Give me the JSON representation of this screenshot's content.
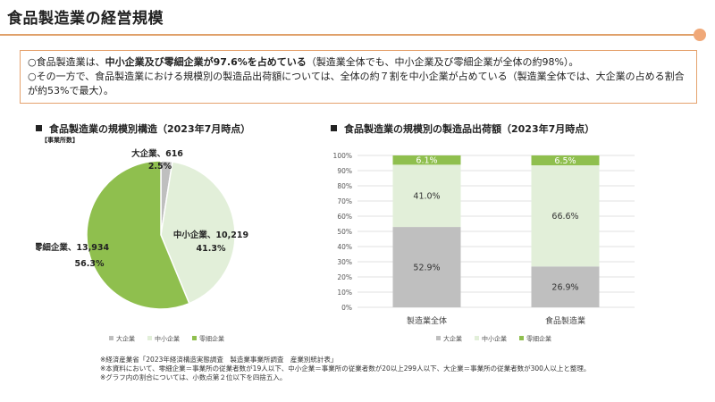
{
  "title": "食品製造業の経営規模",
  "summary": {
    "line1_pre": "○食品製造業は、",
    "line1_bold": "中小企業及び零細企業が97.6%を占めている",
    "line1_post": "（製造業全体でも、中小企業及び零細企業が全体の約98%）。",
    "line2": "○その一方で、食品製造業における規模別の製造品出荷額については、全体の約７割を中小企業が占めている（製造業全体では、大企業の占める割合が約53%で最大）。"
  },
  "colors": {
    "large": "#bfbfbf",
    "medium": "#e2efd9",
    "small": "#8fbf4e",
    "accent": "#e5a26e"
  },
  "chart_data": [
    {
      "type": "pie",
      "title": "食品製造業の規模別構造（2023年7月時点）",
      "unit_label": "【事業所数】",
      "slices": [
        {
          "name": "大企業",
          "value": 616,
          "percent": 2.5,
          "value_label": "大企業、616",
          "percent_label": "2.5%"
        },
        {
          "name": "中小企業",
          "value": 10219,
          "percent": 41.3,
          "value_label": "中小企業、10,219",
          "percent_label": "41.3%"
        },
        {
          "name": "零細企業",
          "value": 13934,
          "percent": 56.3,
          "value_label": "零細企業、13,934",
          "percent_label": "56.3%"
        }
      ],
      "legend": [
        "大企業",
        "中小企業",
        "零細企業"
      ],
      "legend_position": "bottom"
    },
    {
      "type": "bar",
      "stacked": true,
      "title": "食品製造業の規模別の製造品出荷額（2023年7月時点）",
      "categories": [
        "製造業全体",
        "食品製造業"
      ],
      "series": [
        {
          "name": "大企業",
          "values": [
            52.9,
            26.9
          ],
          "labels": [
            "52.9%",
            "26.9%"
          ]
        },
        {
          "name": "中小企業",
          "values": [
            41.0,
            66.6
          ],
          "labels": [
            "41.0%",
            "66.6%"
          ]
        },
        {
          "name": "零細企業",
          "values": [
            6.1,
            6.5
          ],
          "labels": [
            "6.1%",
            "6.5%"
          ]
        }
      ],
      "ylim": [
        0,
        100
      ],
      "yticks": [
        "0%",
        "10%",
        "20%",
        "30%",
        "40%",
        "50%",
        "60%",
        "70%",
        "80%",
        "90%",
        "100%"
      ],
      "grid": true,
      "legend": [
        "大企業",
        "中小企業",
        "零細企業"
      ],
      "legend_position": "bottom"
    }
  ],
  "notes": [
    "※経済産業省「2023年経済構造実態調査　製造業事業所調査　産業別統計表」",
    "※本資料において、零細企業＝事業所の従業者数が19人以下、中小企業＝事業所の従業者数が20以上299人以下、大企業＝事業所の従業者数が300人以上と整理。",
    "※グラフ内の割合については、小数点第２位以下を四捨五入。"
  ]
}
